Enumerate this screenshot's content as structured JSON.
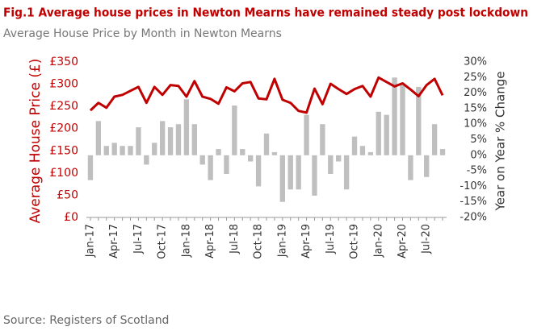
{
  "chart_data": {
    "type": "bar-line",
    "title": "Fig.1 Average house prices in Newton Mearns have remained steady post lockdown",
    "subtitle": "Average House Price by Month in Newton Mearns",
    "source": "Source: Registers of Scotland",
    "y_label": "Average House Price (£)",
    "y2_label": "Year on Year % Change",
    "categories": [
      "Jan-17",
      null,
      null,
      "Apr-17",
      null,
      null,
      "Jul-17",
      null,
      null,
      "Oct-17",
      null,
      null,
      "Jan-18",
      null,
      null,
      "Apr-18",
      null,
      null,
      "Jul-18",
      null,
      null,
      "Oct-18",
      null,
      null,
      "Jan-19",
      null,
      null,
      "Apr-19",
      null,
      null,
      "Jul-19",
      null,
      null,
      "Oct-19",
      null,
      null,
      "Jan-20",
      null,
      null,
      "Apr-20",
      null,
      null,
      "Jul-20",
      null,
      null
    ],
    "series": [
      {
        "name": "Year on Year % Change",
        "kind": "bar",
        "axis": "y2",
        "color": "#bfbfbf",
        "values": [
          -8,
          11,
          3,
          4,
          3,
          3,
          9,
          -3,
          4,
          11,
          9,
          10,
          18,
          10,
          -3,
          -8,
          2,
          -6,
          16,
          2,
          -2,
          -10,
          7,
          1,
          -15,
          -11,
          -11,
          13,
          -13,
          10,
          -6,
          -2,
          -11,
          6,
          3,
          1,
          14,
          13,
          25,
          23,
          -8,
          22,
          -7,
          10,
          2
        ]
      },
      {
        "name": "Average House Price (£)",
        "kind": "line",
        "axis": "y",
        "color": "#c00000",
        "values": [
          241,
          258,
          247,
          272,
          276,
          285,
          294,
          258,
          294,
          276,
          298,
          296,
          272,
          307,
          272,
          267,
          256,
          293,
          284,
          302,
          305,
          268,
          266,
          312,
          265,
          258,
          240,
          236,
          290,
          255,
          301,
          289,
          278,
          289,
          296,
          272,
          315,
          305,
          295,
          302,
          288,
          273,
          298,
          312,
          275
        ]
      }
    ],
    "ylim": [
      0,
      350
    ],
    "yticks": [
      {
        "value": 0,
        "label": "£0"
      },
      {
        "value": 50,
        "label": "£50"
      },
      {
        "value": 100,
        "label": "£100"
      },
      {
        "value": 150,
        "label": "£150"
      },
      {
        "value": 200,
        "label": "£200"
      },
      {
        "value": 250,
        "label": "£250"
      },
      {
        "value": 300,
        "label": "£300"
      },
      {
        "value": 350,
        "label": "£350"
      }
    ],
    "y2lim": [
      -20,
      30
    ],
    "y2ticks": [
      {
        "value": -20,
        "label": "-20%"
      },
      {
        "value": -15,
        "label": "-15%"
      },
      {
        "value": -10,
        "label": "-10%"
      },
      {
        "value": -5,
        "label": "-5%"
      },
      {
        "value": 0,
        "label": "0%"
      },
      {
        "value": 5,
        "label": "5%"
      },
      {
        "value": 10,
        "label": "10%"
      },
      {
        "value": 15,
        "label": "15%"
      },
      {
        "value": 20,
        "label": "20%"
      },
      {
        "value": 25,
        "label": "25%"
      },
      {
        "value": 30,
        "label": "30%"
      }
    ],
    "grid": false
  }
}
